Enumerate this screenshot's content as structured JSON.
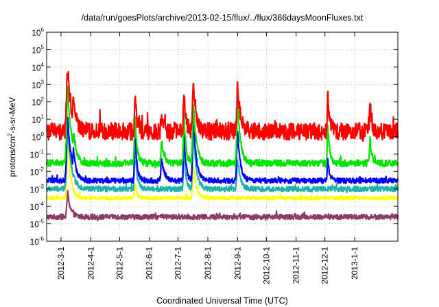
{
  "chart_data": {
    "type": "line",
    "title": "/data/run/goesPlots/archive/2013-02-15/flux/../flux/366daysMoonFluxes.txt",
    "xlabel": "Coordinated Universal Time (UTC)",
    "ylabel": {
      "base": "protons/cm",
      "sup": "2",
      "rest": "-s-sr-MeV"
    },
    "yscale": "log",
    "ylim": [
      1e-06,
      1000000.0
    ],
    "yticks": [
      {
        "value": 1e-06,
        "base": "10",
        "exp": "-6"
      },
      {
        "value": 1e-05,
        "base": "10",
        "exp": "-5"
      },
      {
        "value": 0.0001,
        "base": "10",
        "exp": "-4"
      },
      {
        "value": 0.001,
        "base": "10",
        "exp": "-3"
      },
      {
        "value": 0.01,
        "base": "10",
        "exp": "-2"
      },
      {
        "value": 0.1,
        "base": "10",
        "exp": "-1"
      },
      {
        "value": 1,
        "base": "10",
        "exp": "0"
      },
      {
        "value": 10,
        "base": "10",
        "exp": "1"
      },
      {
        "value": 100,
        "base": "10",
        "exp": "2"
      },
      {
        "value": 1000,
        "base": "10",
        "exp": "3"
      },
      {
        "value": 10000,
        "base": "10",
        "exp": "4"
      },
      {
        "value": 100000,
        "base": "10",
        "exp": "5"
      },
      {
        "value": 1000000,
        "base": "10",
        "exp": "6"
      }
    ],
    "xlim": [
      "2012-02-15",
      "2013-02-15"
    ],
    "xticks": [
      "2012-3-1",
      "2012-4-1",
      "2012-5-1",
      "2012-6-1",
      "2012-7-1",
      "2012-8-1",
      "2012-9-1",
      "2012-10-1",
      "2012-11-1",
      "2012-12-1",
      "2013-1-1"
    ],
    "xtick_dates": [
      "2012-03-01",
      "2012-04-01",
      "2012-05-01",
      "2012-06-01",
      "2012-07-01",
      "2012-08-01",
      "2012-09-01",
      "2012-10-01",
      "2012-11-01",
      "2012-12-01",
      "2013-01-01"
    ],
    "grid": true,
    "series": [
      {
        "color": "#8b3d68",
        "baseline": 2.5e-05,
        "noise": 0.15,
        "events": [
          {
            "date": "2012-03-08",
            "peak": 0.0006,
            "width": 3
          }
        ]
      },
      {
        "color": "#ffff00",
        "baseline": 0.0003,
        "noise": 0.1,
        "events": [
          {
            "date": "2012-03-08",
            "peak": 1,
            "width": 3
          },
          {
            "date": "2012-05-17",
            "peak": 0.002,
            "width": 2
          },
          {
            "date": "2012-07-17",
            "peak": 0.02,
            "width": 3
          }
        ]
      },
      {
        "color": "#20b2aa",
        "baseline": 0.001,
        "noise": 0.15,
        "events": [
          {
            "date": "2012-03-08",
            "peak": 3,
            "width": 4
          },
          {
            "date": "2012-05-17",
            "peak": 0.3,
            "width": 2
          },
          {
            "date": "2012-07-07",
            "peak": 0.2,
            "width": 2
          },
          {
            "date": "2012-07-17",
            "peak": 2,
            "width": 3
          },
          {
            "date": "2012-09-01",
            "peak": 0.05,
            "width": 3
          }
        ]
      },
      {
        "color": "#0000ff",
        "baseline": 0.003,
        "noise": 0.15,
        "events": [
          {
            "date": "2012-03-08",
            "peak": 10,
            "width": 4
          },
          {
            "date": "2012-03-14",
            "peak": 0.2,
            "width": 3
          },
          {
            "date": "2012-05-17",
            "peak": 2,
            "width": 2
          },
          {
            "date": "2012-06-14",
            "peak": 0.05,
            "width": 3
          },
          {
            "date": "2012-07-07",
            "peak": 2,
            "width": 2
          },
          {
            "date": "2012-07-17",
            "peak": 10,
            "width": 3
          },
          {
            "date": "2012-09-01",
            "peak": 2,
            "width": 3
          },
          {
            "date": "2012-12-04",
            "peak": 0.05,
            "width": 2
          }
        ]
      },
      {
        "color": "#00e400",
        "baseline": 0.03,
        "noise": 0.2,
        "events": [
          {
            "date": "2012-03-08",
            "peak": 500,
            "width": 4
          },
          {
            "date": "2012-03-14",
            "peak": 2,
            "width": 3
          },
          {
            "date": "2012-05-17",
            "peak": 20,
            "width": 2
          },
          {
            "date": "2012-06-14",
            "peak": 0.5,
            "width": 3
          },
          {
            "date": "2012-07-07",
            "peak": 30,
            "width": 2
          },
          {
            "date": "2012-07-17",
            "peak": 100,
            "width": 3
          },
          {
            "date": "2012-09-01",
            "peak": 100,
            "width": 3
          },
          {
            "date": "2012-12-04",
            "peak": 5,
            "width": 2
          },
          {
            "date": "2013-01-17",
            "peak": 0.5,
            "width": 2
          }
        ]
      },
      {
        "color": "#ff0000",
        "baseline": 2,
        "noise": 0.5,
        "events": [
          {
            "date": "2012-03-08",
            "peak": 8000,
            "width": 4
          },
          {
            "date": "2012-03-14",
            "peak": 200,
            "width": 3
          },
          {
            "date": "2012-05-17",
            "peak": 200,
            "width": 2
          },
          {
            "date": "2012-06-14",
            "peak": 10,
            "width": 3
          },
          {
            "date": "2012-07-07",
            "peak": 300,
            "width": 2
          },
          {
            "date": "2012-07-17",
            "peak": 1000,
            "width": 3
          },
          {
            "date": "2012-09-01",
            "peak": 700,
            "width": 3
          },
          {
            "date": "2012-12-04",
            "peak": 200,
            "width": 2
          },
          {
            "date": "2013-01-17",
            "peak": 100,
            "width": 2
          }
        ]
      }
    ]
  }
}
